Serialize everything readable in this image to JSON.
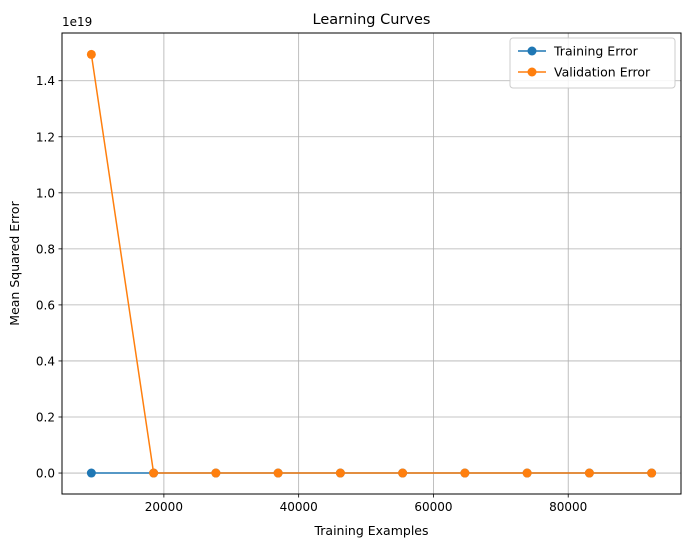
{
  "chart_data": {
    "type": "line",
    "title": "Learning Curves",
    "xlabel": "Training Examples",
    "ylabel": "Mean Squared Error",
    "y_scale_label": "1e19",
    "x": [
      9238,
      18476,
      27714,
      36952,
      46190,
      55428,
      64666,
      73904,
      83142,
      92380
    ],
    "xlim": [
      4881,
      96737
    ],
    "ylim": [
      -0.0748,
      1.5703
    ],
    "y_multiplier": 1e+19,
    "x_ticks": [
      20000,
      40000,
      60000,
      80000
    ],
    "x_tick_labels": [
      "20000",
      "40000",
      "60000",
      "80000"
    ],
    "y_ticks": [
      0.0,
      0.2,
      0.4,
      0.6,
      0.8,
      1.0,
      1.2,
      1.4
    ],
    "y_tick_labels": [
      "0.0",
      "0.2",
      "0.4",
      "0.6",
      "0.8",
      "1.0",
      "1.2",
      "1.4"
    ],
    "grid": true,
    "legend_position": "top-right",
    "series": [
      {
        "name": "Training Error",
        "color": "#1f77b4",
        "marker": "circle",
        "values": [
          0,
          0,
          0,
          0,
          0,
          0,
          0,
          0,
          0,
          0
        ]
      },
      {
        "name": "Validation Error",
        "color": "#ff7f0e",
        "marker": "circle",
        "values": [
          1.494,
          0,
          0,
          0,
          0,
          0,
          0,
          0,
          0,
          0
        ]
      }
    ]
  }
}
